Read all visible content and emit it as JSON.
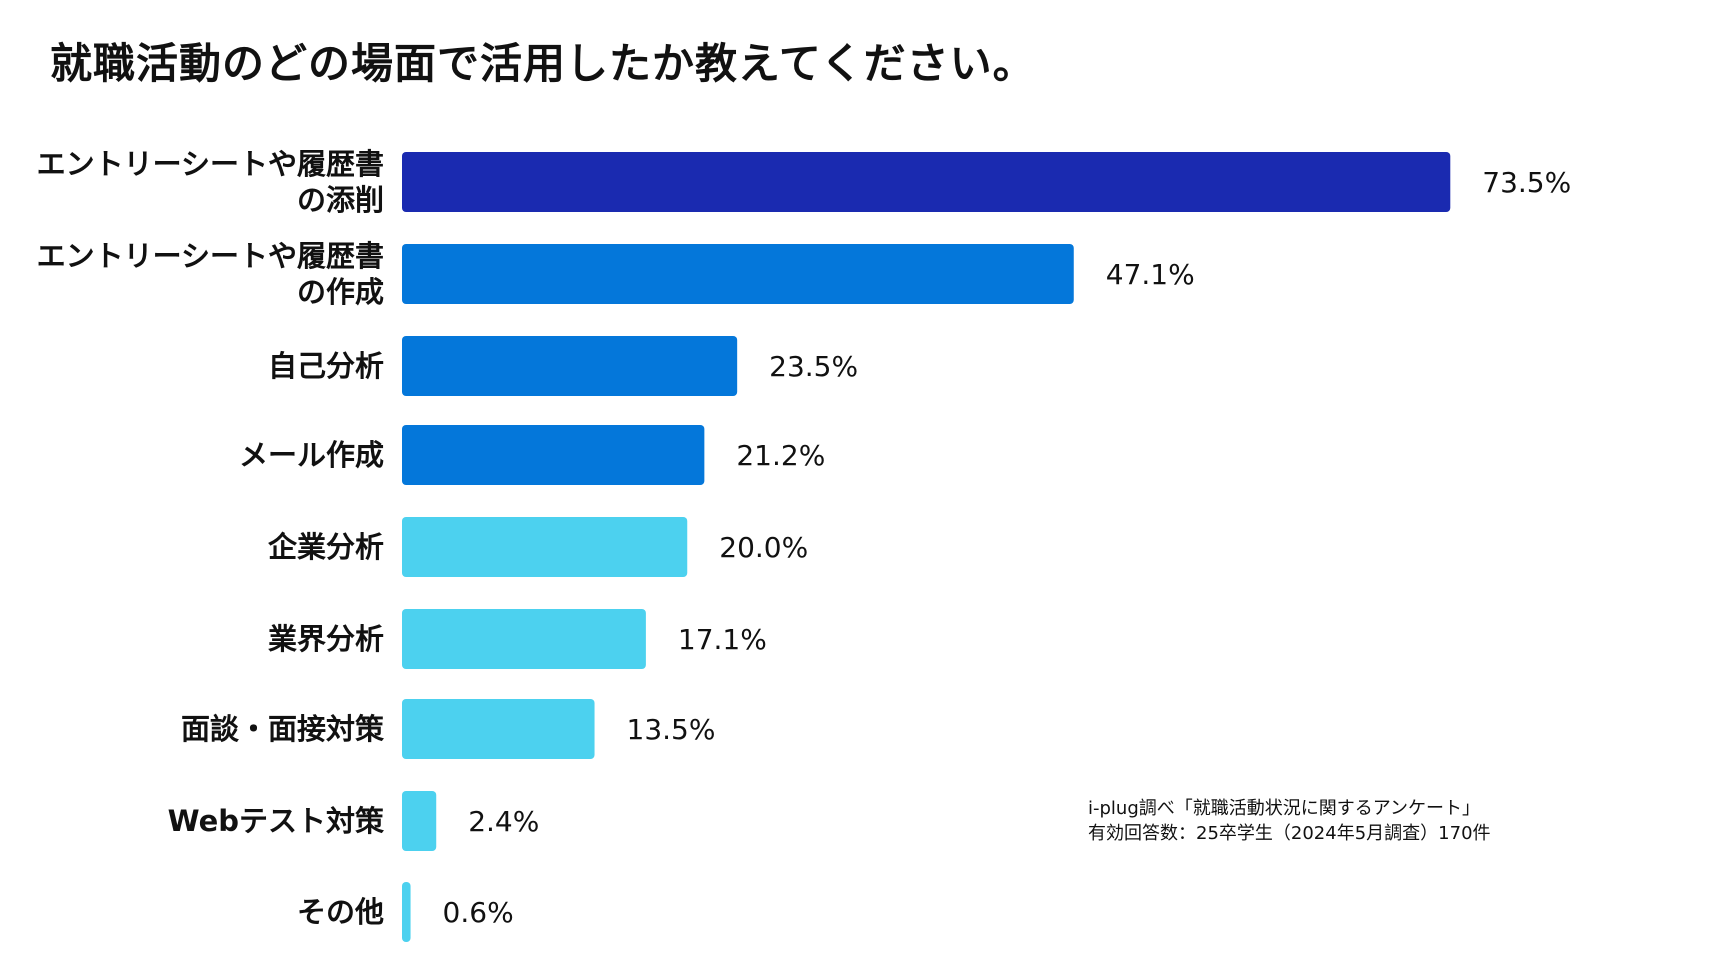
{
  "chart_data": {
    "type": "bar",
    "orientation": "horizontal",
    "title": "就職活動のどの場面で活用したか教えてください。",
    "xlabel": "",
    "ylabel": "",
    "xlim": [
      0,
      80
    ],
    "grid": false,
    "unit": "%",
    "categories": [
      "エントリーシートや履歴書 の添削",
      "エントリーシートや履歴書 の作成",
      "自己分析",
      "メール作成",
      "企業分析",
      "業界分析",
      "面談・面接対策",
      "Webテスト対策",
      "その他"
    ],
    "category_lines": [
      [
        "エントリーシートや履歴書",
        "の添削"
      ],
      [
        "エントリーシートや履歴書",
        "の作成"
      ],
      [
        "自己分析"
      ],
      [
        "メール作成"
      ],
      [
        "企業分析"
      ],
      [
        "業界分析"
      ],
      [
        "面談・面接対策"
      ],
      [
        "Webテスト対策"
      ],
      [
        "その他"
      ]
    ],
    "values": [
      73.5,
      47.1,
      23.5,
      21.2,
      20.0,
      17.1,
      13.5,
      2.4,
      0.6
    ],
    "value_labels": [
      "73.5%",
      "47.1%",
      "23.5%",
      "21.2%",
      "20.0%",
      "17.1%",
      "13.5%",
      "2.4%",
      "0.6%"
    ],
    "bar_colors": [
      "#1a2ab0",
      "#0477da",
      "#0477da",
      "#0477da",
      "#4cd1ef",
      "#4cd1ef",
      "#4cd1ef",
      "#4cd1ef",
      "#4cd1ef"
    ]
  },
  "source": {
    "line1": "i-plug調べ「就職活動状況に関するアンケート」",
    "line2": "有効回答数：25卒学生（2024年5月調査）170件"
  }
}
